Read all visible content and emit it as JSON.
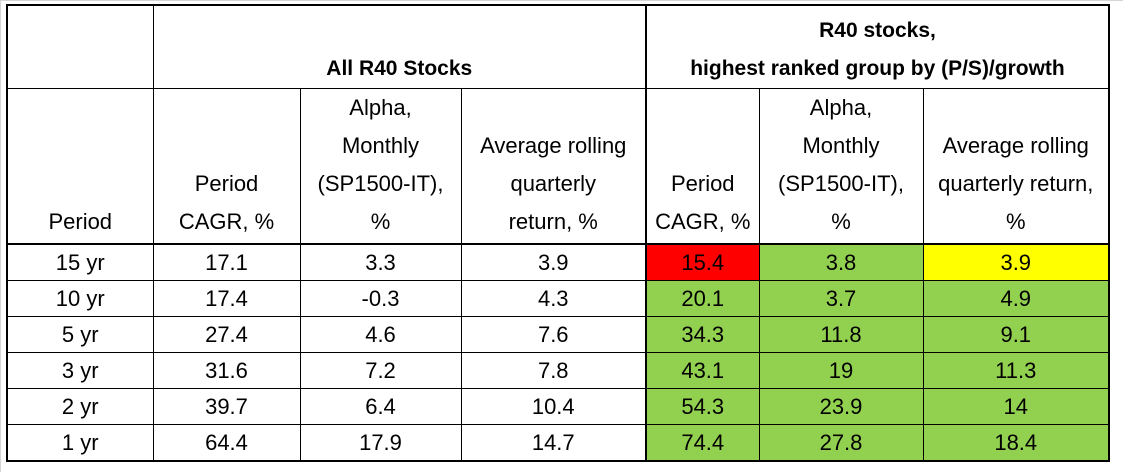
{
  "colors": {
    "red": "#ff0000",
    "green": "#92d050",
    "yellow": "#ffff00"
  },
  "header": {
    "group_all": "All R40 Stocks",
    "group_top_line1": "R40 stocks,",
    "group_top_line2": "highest ranked group by (P/S)/growth"
  },
  "columns": {
    "period": "Period",
    "all": [
      [
        "",
        "",
        "Period",
        "CAGR, %"
      ],
      [
        "Alpha,",
        "Monthly",
        "(SP1500-IT),",
        "%"
      ],
      [
        "",
        "Average rolling",
        "quarterly",
        "return, %"
      ]
    ],
    "top": [
      [
        "",
        "",
        "Period",
        "CAGR, %"
      ],
      [
        "Alpha,",
        "Monthly",
        "(SP1500-IT),",
        "%"
      ],
      [
        "",
        "Average rolling",
        "quarterly return,",
        "%"
      ]
    ]
  },
  "rows": [
    {
      "period": "15 yr",
      "values": [
        "17.1",
        "3.3",
        "3.9",
        "15.4",
        "3.8",
        "3.9"
      ],
      "fills": [
        "red",
        "green",
        "yellow"
      ]
    },
    {
      "period": "10 yr",
      "values": [
        "17.4",
        "-0.3",
        "4.3",
        "20.1",
        "3.7",
        "4.9"
      ],
      "fills": [
        "green",
        "green",
        "green"
      ]
    },
    {
      "period": "5 yr",
      "values": [
        "27.4",
        "4.6",
        "7.6",
        "34.3",
        "11.8",
        "9.1"
      ],
      "fills": [
        "green",
        "green",
        "green"
      ]
    },
    {
      "period": "3 yr",
      "values": [
        "31.6",
        "7.2",
        "7.8",
        "43.1",
        "19",
        "11.3"
      ],
      "fills": [
        "green",
        "green",
        "green"
      ]
    },
    {
      "period": "2 yr",
      "values": [
        "39.7",
        "6.4",
        "10.4",
        "54.3",
        "23.9",
        "14"
      ],
      "fills": [
        "green",
        "green",
        "green"
      ]
    },
    {
      "period": "1 yr",
      "values": [
        "64.4",
        "17.9",
        "14.7",
        "74.4",
        "27.8",
        "18.4"
      ],
      "fills": [
        "green",
        "green",
        "green"
      ]
    }
  ]
}
